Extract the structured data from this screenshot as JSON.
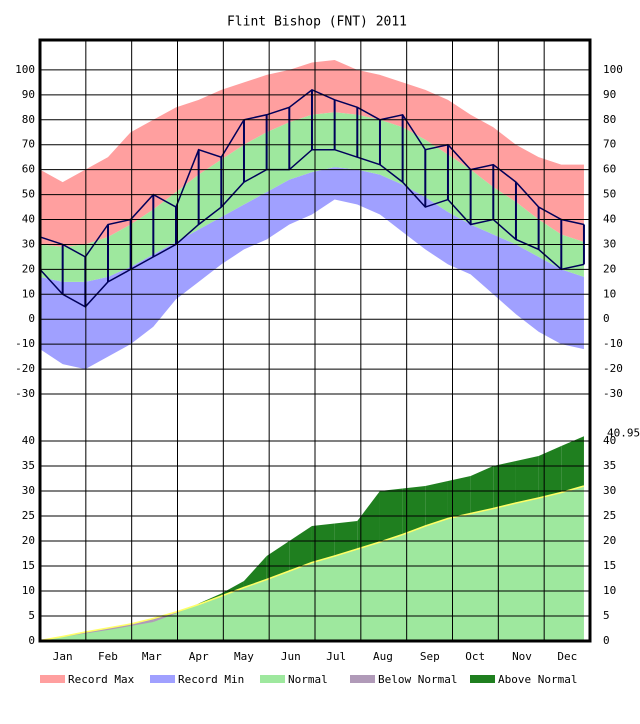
{
  "chart_data": [
    {
      "type": "band",
      "title": "Flint Bishop (FNT) 2011",
      "x": [
        1,
        16,
        31,
        46,
        61,
        76,
        91,
        106,
        121,
        136,
        151,
        166,
        181,
        196,
        211,
        226,
        241,
        256,
        271,
        286,
        301,
        316,
        331,
        346,
        361
      ],
      "xlim": [
        1,
        365
      ],
      "xticks": [
        {
          "value": 16,
          "label": "Jan"
        },
        {
          "value": 46,
          "label": "Feb"
        },
        {
          "value": 75,
          "label": "Mar"
        },
        {
          "value": 106,
          "label": "Apr"
        },
        {
          "value": 136,
          "label": "May"
        },
        {
          "value": 167,
          "label": "Jun"
        },
        {
          "value": 197,
          "label": "Jul"
        },
        {
          "value": 228,
          "label": "Aug"
        },
        {
          "value": 259,
          "label": "Sep"
        },
        {
          "value": 289,
          "label": "Oct"
        },
        {
          "value": 320,
          "label": "Nov"
        },
        {
          "value": 350,
          "label": "Dec"
        }
      ],
      "ylim": [
        -34,
        112
      ],
      "yticks": [
        100,
        90,
        80,
        70,
        60,
        50,
        40,
        30,
        20,
        10,
        0,
        -10,
        -20,
        -30
      ],
      "grid": true,
      "series": [
        {
          "name": "Record Max",
          "color": "#ff9f9f",
          "values": [
            60,
            55,
            60,
            65,
            75,
            80,
            85,
            88,
            92,
            95,
            98,
            100,
            103,
            104,
            100,
            98,
            95,
            92,
            88,
            82,
            77,
            70,
            65,
            62,
            62
          ]
        },
        {
          "name": "Record Min",
          "color": "#a0a0ff",
          "values": [
            -12,
            -18,
            -20,
            -15,
            -10,
            -3,
            8,
            15,
            22,
            28,
            32,
            38,
            42,
            48,
            46,
            42,
            35,
            28,
            22,
            18,
            10,
            2,
            -5,
            -10,
            -12
          ]
        },
        {
          "name": "Normal",
          "color": "#9ee89e",
          "values": [
            30,
            29,
            30,
            33,
            38,
            44,
            51,
            58,
            64,
            70,
            75,
            79,
            82,
            83,
            82,
            80,
            77,
            72,
            66,
            60,
            53,
            47,
            40,
            34,
            31
          ],
          "low": [
            17,
            15,
            15,
            17,
            21,
            26,
            31,
            36,
            41,
            46,
            51,
            56,
            59,
            61,
            60,
            58,
            54,
            49,
            43,
            38,
            34,
            30,
            25,
            20,
            17
          ]
        }
      ],
      "observed": {
        "color": "#00005a",
        "high": [
          33,
          30,
          25,
          38,
          40,
          50,
          45,
          68,
          65,
          80,
          82,
          85,
          92,
          88,
          85,
          80,
          82,
          68,
          70,
          60,
          62,
          55,
          45,
          40,
          38
        ],
        "low": [
          20,
          10,
          5,
          15,
          20,
          25,
          30,
          38,
          45,
          55,
          60,
          60,
          68,
          68,
          65,
          62,
          55,
          45,
          48,
          38,
          40,
          32,
          28,
          20,
          22
        ]
      }
    },
    {
      "type": "cumulative",
      "ylim": [
        0,
        45
      ],
      "yticks": [
        40,
        35,
        30,
        25,
        20,
        15,
        10,
        5,
        0
      ],
      "grid": true,
      "series": [
        {
          "values": [
            0.1,
            0.8,
            1.5,
            2.2,
            3.0,
            3.8,
            5.5,
            7.5,
            9.5,
            12,
            17,
            20,
            23,
            23.5,
            24,
            30,
            30.5,
            31,
            32,
            33,
            35,
            36,
            37,
            39,
            40.95
          ]
        },
        {
          "color": "#ffff66",
          "values": [
            0.1,
            0.9,
            1.8,
            2.6,
            3.4,
            4.5,
            5.8,
            7.3,
            9.0,
            10.7,
            12.3,
            14.0,
            15.7,
            17.0,
            18.4,
            19.8,
            21.3,
            23.0,
            24.5,
            25.5,
            26.5,
            27.6,
            28.6,
            29.7,
            31.0
          ]
        }
      ],
      "fills": [
        {
          "name": "Below Normal",
          "color": "#b09ab8"
        },
        {
          "name": "Above Normal",
          "color": "#1f7f1f"
        }
      ]
    }
  ]
}
